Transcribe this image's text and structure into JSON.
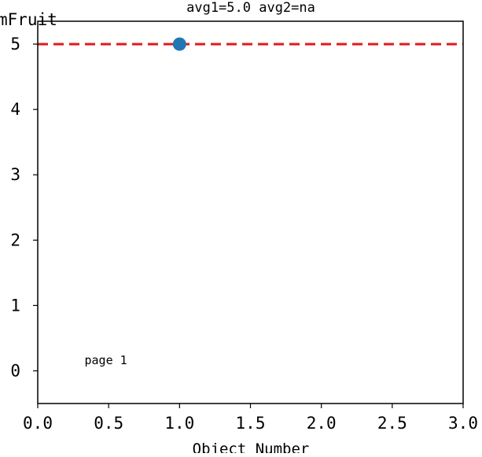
{
  "chart_data": {
    "type": "scatter",
    "title": "avg1=5.0 avg2=na",
    "xlabel": "Object Number",
    "ylabel": "mFruit",
    "xlim": [
      0.0,
      3.0
    ],
    "ylim": [
      -0.5,
      5.35
    ],
    "x_ticks": [
      "0.0",
      "0.5",
      "1.0",
      "1.5",
      "2.0",
      "2.5",
      "3.0"
    ],
    "x_tick_values": [
      0.0,
      0.5,
      1.0,
      1.5,
      2.0,
      2.5,
      3.0
    ],
    "y_ticks": [
      "0",
      "1",
      "2",
      "3",
      "4",
      "5"
    ],
    "y_tick_values": [
      0,
      1,
      2,
      3,
      4,
      5
    ],
    "series": [
      {
        "x": [
          1.0
        ],
        "y": [
          5.0
        ],
        "color": "#1f77b4"
      }
    ],
    "reference_line": {
      "y": 5.0,
      "color": "#e31a1c",
      "style": "dashed"
    },
    "annotation": {
      "text": "page 1",
      "x": 0.33,
      "y": 0.1
    },
    "grid": false
  }
}
